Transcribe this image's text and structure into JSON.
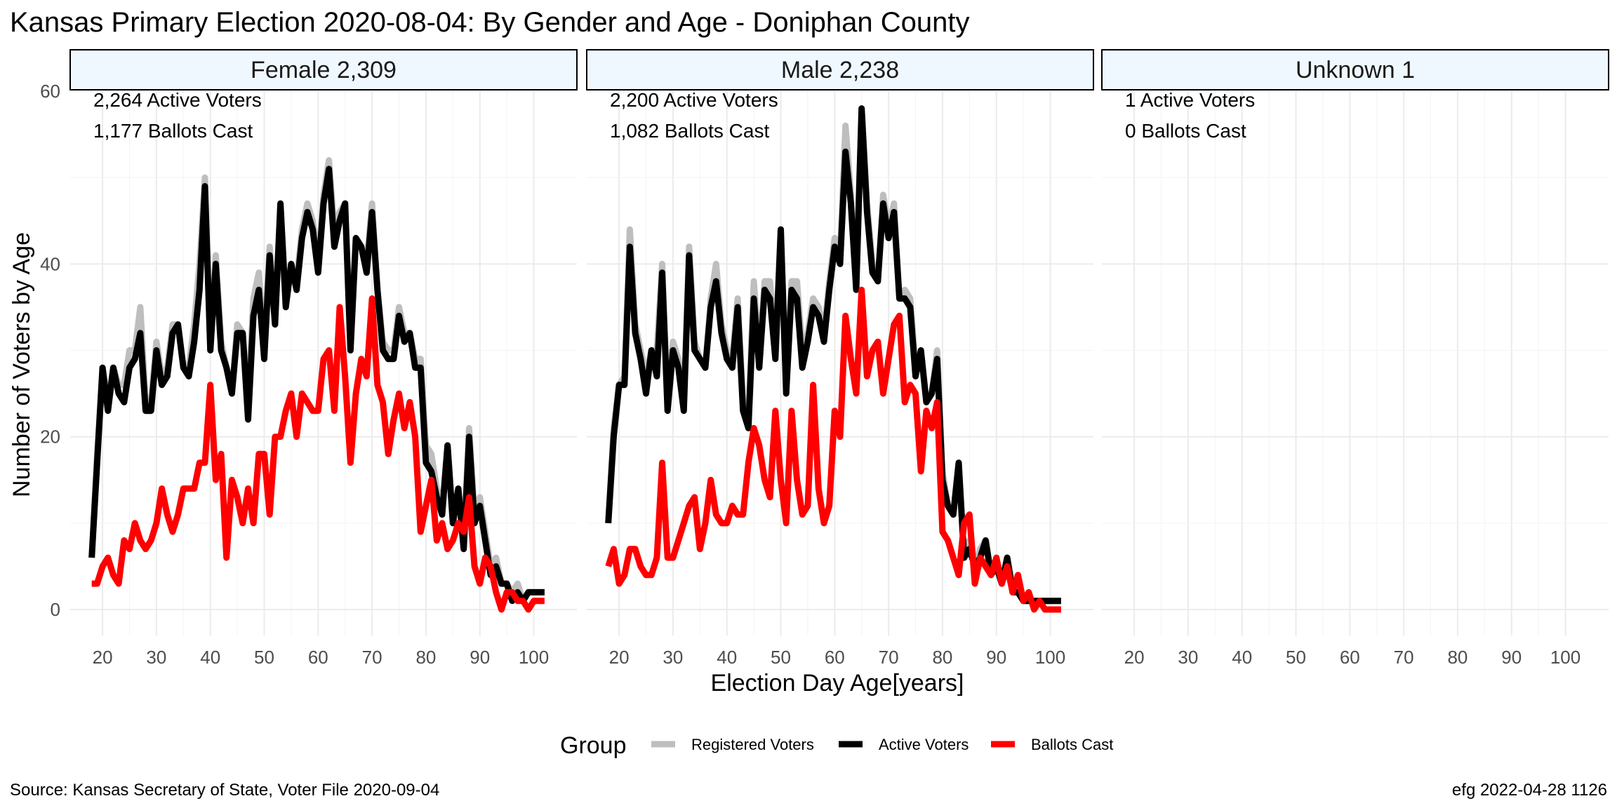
{
  "chart_data": {
    "type": "line",
    "title": "Kansas Primary Election 2020-08-04:  By Gender and Age - Doniphan County",
    "xlabel": "Election Day Age[years]",
    "ylabel": "Number of Voters by Age",
    "xlim": [
      14,
      108
    ],
    "ylim": [
      -3,
      60
    ],
    "x_ticks": [
      20,
      30,
      40,
      50,
      60,
      70,
      80,
      90,
      100
    ],
    "y_ticks": [
      0,
      20,
      40,
      60
    ],
    "grid": true,
    "legend": {
      "title": "Group",
      "position": "bottom",
      "entries": [
        {
          "name": "Registered Voters",
          "color": "#bebebe"
        },
        {
          "name": "Active Voters",
          "color": "#000000"
        },
        {
          "name": "Ballots Cast",
          "color": "#ff0000"
        }
      ]
    },
    "source": "Source:  Kansas Secretary of State, Voter File  2020-09-04",
    "credit": "efg 2022-04-28 1126",
    "panels": [
      {
        "strip": "Female 2,309",
        "annotations": [
          "2,264 Active Voters",
          "1,177 Ballots Cast"
        ],
        "x_start": 18,
        "series": [
          {
            "name": "Registered Voters",
            "color": "#bebebe",
            "values": [
              6,
              18,
              28,
              24,
              28,
              26,
              26,
              30,
              30,
              35,
              24,
              24,
              31,
              27,
              28,
              33,
              33,
              28,
              28,
              33,
              40,
              50,
              30,
              41,
              31,
              28,
              25,
              33,
              32,
              24,
              36,
              39,
              30,
              42,
              34,
              47,
              36,
              40,
              38,
              44,
              47,
              45,
              40,
              48,
              52,
              44,
              46,
              47,
              31,
              43,
              42,
              40,
              47,
              37,
              31,
              30,
              30,
              35,
              32,
              32,
              29,
              29,
              19,
              18,
              14,
              12,
              19,
              10,
              14,
              8,
              21,
              11,
              13,
              9,
              5,
              6,
              3,
              3,
              2,
              3,
              1,
              2,
              2,
              2,
              2
            ]
          },
          {
            "name": "Active Voters",
            "color": "#000000",
            "values": [
              6,
              17,
              28,
              23,
              28,
              25,
              24,
              28,
              29,
              32,
              23,
              23,
              30,
              26,
              27,
              32,
              33,
              28,
              27,
              31,
              37,
              49,
              30,
              40,
              30,
              28,
              25,
              32,
              32,
              22,
              34,
              37,
              29,
              41,
              33,
              47,
              35,
              40,
              37,
              43,
              46,
              44,
              39,
              47,
              51,
              42,
              45,
              47,
              30,
              43,
              42,
              39,
              46,
              37,
              30,
              29,
              29,
              34,
              31,
              32,
              28,
              28,
              17,
              16,
              13,
              11,
              19,
              10,
              14,
              7,
              20,
              10,
              12,
              8,
              4,
              5,
              3,
              3,
              1,
              2,
              1,
              2,
              2,
              2,
              2
            ]
          },
          {
            "name": "Ballots Cast",
            "color": "#ff0000",
            "values": [
              3,
              3,
              5,
              6,
              4,
              3,
              8,
              7,
              10,
              8,
              7,
              8,
              10,
              14,
              11,
              9,
              11,
              14,
              14,
              14,
              17,
              17,
              26,
              15,
              18,
              6,
              15,
              13,
              10,
              14,
              10,
              18,
              18,
              11,
              20,
              20,
              23,
              25,
              20,
              25,
              24,
              23,
              23,
              29,
              30,
              23,
              35,
              27,
              17,
              25,
              29,
              27,
              36,
              26,
              24,
              18,
              22,
              25,
              21,
              24,
              20,
              9,
              12,
              15,
              8,
              10,
              7,
              8,
              10,
              9,
              13,
              5,
              3,
              6,
              5,
              2,
              0,
              2,
              2,
              1,
              1,
              0,
              1,
              1,
              1
            ]
          }
        ]
      },
      {
        "strip": "Male 2,238",
        "annotations": [
          "2,200 Active Voters",
          "1,082 Ballots Cast"
        ],
        "x_start": 18,
        "series": [
          {
            "name": "Registered Voters",
            "color": "#bebebe",
            "values": [
              10,
              21,
              26,
              27,
              44,
              33,
              30,
              27,
              30,
              30,
              40,
              24,
              31,
              29,
              24,
              42,
              31,
              29,
              28,
              36,
              40,
              33,
              30,
              29,
              36,
              24,
              22,
              38,
              29,
              38,
              38,
              30,
              44,
              26,
              38,
              38,
              30,
              32,
              36,
              35,
              32,
              38,
              43,
              41,
              56,
              48,
              38,
              58,
              47,
              40,
              38,
              48,
              44,
              47,
              36,
              37,
              36,
              28,
              30,
              24,
              25,
              30,
              16,
              12,
              11,
              17,
              6,
              8,
              5,
              7,
              8,
              4,
              5,
              3,
              6,
              3,
              2,
              1,
              1,
              1,
              1,
              1,
              1,
              1,
              1
            ]
          },
          {
            "name": "Active Voters",
            "color": "#000000",
            "values": [
              10,
              20,
              26,
              26,
              42,
              32,
              29,
              25,
              30,
              27,
              39,
              23,
              30,
              28,
              23,
              41,
              30,
              29,
              28,
              35,
              38,
              32,
              29,
              28,
              35,
              23,
              21,
              36,
              28,
              37,
              36,
              29,
              44,
              25,
              37,
              36,
              28,
              31,
              35,
              34,
              31,
              37,
              42,
              40,
              53,
              47,
              37,
              58,
              46,
              39,
              38,
              47,
              43,
              46,
              36,
              36,
              35,
              27,
              30,
              24,
              25,
              29,
              15,
              12,
              11,
              17,
              6,
              7,
              5,
              6,
              8,
              4,
              5,
              3,
              6,
              2,
              2,
              1,
              1,
              1,
              1,
              1,
              1,
              1,
              1
            ]
          },
          {
            "name": "Ballots Cast",
            "color": "#ff0000",
            "values": [
              5,
              7,
              3,
              4,
              7,
              7,
              5,
              4,
              4,
              6,
              17,
              6,
              6,
              8,
              10,
              12,
              13,
              7,
              10,
              15,
              11,
              10,
              10,
              12,
              11,
              11,
              17,
              21,
              19,
              15,
              13,
              23,
              15,
              10,
              23,
              15,
              11,
              12,
              26,
              14,
              10,
              12,
              23,
              20,
              34,
              29,
              25,
              37,
              27,
              30,
              31,
              25,
              29,
              33,
              34,
              24,
              26,
              25,
              16,
              23,
              21,
              24,
              9,
              8,
              6,
              4,
              10,
              11,
              3,
              6,
              5,
              4,
              6,
              3,
              5,
              2,
              4,
              1,
              2,
              0,
              1,
              0,
              0,
              0,
              0
            ]
          }
        ]
      },
      {
        "strip": "Unknown 1",
        "annotations": [
          "1 Active Voters",
          "0 Ballots Cast"
        ],
        "x_start": 18,
        "series": []
      }
    ]
  }
}
